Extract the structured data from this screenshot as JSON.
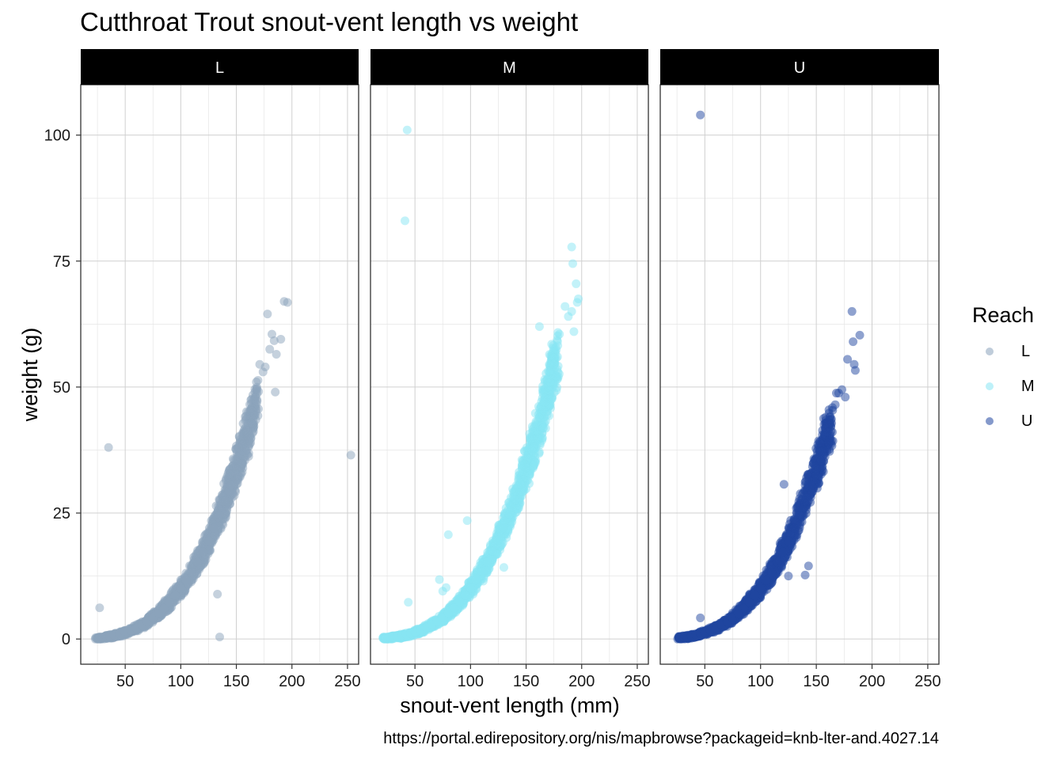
{
  "colors": {
    "L": "#8ba3bb",
    "M": "#88e6f4",
    "U": "#1f45a0"
  },
  "chart_data": {
    "type": "scatter",
    "title": "Cutthroat Trout snout-vent length vs weight",
    "xlabel": "snout-vent length (mm)",
    "ylabel": "weight (g)",
    "caption": "https://portal.edirepository.org/nis/mapbrowse?packageid=knb-lter-and.4027.14",
    "xlim": [
      10,
      260
    ],
    "ylim": [
      -5,
      110
    ],
    "x_ticks": [
      50,
      100,
      150,
      200,
      250
    ],
    "y_ticks": [
      0,
      25,
      50,
      75,
      100
    ],
    "grid": true,
    "legend": {
      "title": "Reach",
      "position": "right",
      "entries": [
        "L",
        "M",
        "U"
      ]
    },
    "facet_by": "Reach",
    "facets": [
      {
        "label": "L",
        "series": "L",
        "bulk_curve": {
          "x_range": [
            25,
            168
          ],
          "formula": "weight ≈ 1.0e-5 × length^3 (dense band)"
        },
        "points": [
          [
            26,
            0.2
          ],
          [
            28,
            0.3
          ],
          [
            30,
            0.4
          ],
          [
            33,
            0.5
          ],
          [
            36,
            0.6
          ],
          [
            40,
            0.8
          ],
          [
            45,
            1.0
          ],
          [
            50,
            1.3
          ],
          [
            55,
            1.7
          ],
          [
            60,
            2.2
          ],
          [
            65,
            2.8
          ],
          [
            70,
            3.4
          ],
          [
            75,
            4.2
          ],
          [
            80,
            5.1
          ],
          [
            85,
            6.1
          ],
          [
            90,
            7.3
          ],
          [
            95,
            8.6
          ],
          [
            100,
            10.0
          ],
          [
            105,
            11.6
          ],
          [
            110,
            13.3
          ],
          [
            115,
            15.2
          ],
          [
            120,
            17.3
          ],
          [
            125,
            19.5
          ],
          [
            130,
            22.0
          ],
          [
            135,
            24.6
          ],
          [
            140,
            27.4
          ],
          [
            145,
            30.5
          ],
          [
            150,
            33.8
          ],
          [
            155,
            37.2
          ],
          [
            160,
            41.0
          ],
          [
            165,
            44.9
          ],
          [
            170,
            49.1
          ],
          [
            176,
            54.0
          ],
          [
            180,
            57.5
          ],
          [
            182,
            60.5
          ],
          [
            184,
            59.2
          ],
          [
            186,
            56.5
          ],
          [
            190,
            59.5
          ],
          [
            193,
            67.0
          ],
          [
            196,
            66.8
          ],
          [
            178,
            64.5
          ],
          [
            185,
            49.0
          ],
          [
            168,
            51.0
          ],
          [
            171,
            54.5
          ],
          [
            174,
            53.0
          ],
          [
            35,
            38.0
          ],
          [
            27,
            6.2
          ],
          [
            133,
            8.9
          ],
          [
            135,
            0.4
          ],
          [
            253,
            36.5
          ]
        ]
      },
      {
        "label": "M",
        "series": "M",
        "bulk_curve": {
          "x_range": [
            22,
            178
          ],
          "formula": "weight ≈ 1.0e-5 × length^3 (dense band)"
        },
        "points": [
          [
            24,
            0.2
          ],
          [
            27,
            0.3
          ],
          [
            30,
            0.4
          ],
          [
            34,
            0.5
          ],
          [
            38,
            0.7
          ],
          [
            42,
            0.9
          ],
          [
            46,
            1.1
          ],
          [
            50,
            1.4
          ],
          [
            55,
            1.8
          ],
          [
            60,
            2.3
          ],
          [
            65,
            2.9
          ],
          [
            70,
            3.5
          ],
          [
            75,
            4.3
          ],
          [
            80,
            5.2
          ],
          [
            85,
            6.2
          ],
          [
            90,
            7.4
          ],
          [
            95,
            8.7
          ],
          [
            100,
            10.1
          ],
          [
            105,
            11.7
          ],
          [
            110,
            13.4
          ],
          [
            115,
            15.3
          ],
          [
            120,
            17.4
          ],
          [
            125,
            19.6
          ],
          [
            130,
            22.1
          ],
          [
            135,
            24.7
          ],
          [
            140,
            27.6
          ],
          [
            145,
            30.7
          ],
          [
            150,
            34.0
          ],
          [
            155,
            37.5
          ],
          [
            160,
            41.3
          ],
          [
            165,
            45.5
          ],
          [
            170,
            50.0
          ],
          [
            175,
            54.5
          ],
          [
            180,
            60.5
          ],
          [
            185,
            66.0
          ],
          [
            188,
            64.0
          ],
          [
            191,
            65.0
          ],
          [
            193,
            61.0
          ],
          [
            192,
            74.5
          ],
          [
            191,
            77.8
          ],
          [
            196,
            66.8
          ],
          [
            197,
            67.5
          ],
          [
            195,
            70.5
          ],
          [
            178,
            53.5
          ],
          [
            173,
            58.5
          ],
          [
            162,
            62.0
          ],
          [
            43,
            101.0
          ],
          [
            41,
            83.0
          ],
          [
            44,
            7.3
          ],
          [
            80,
            20.7
          ],
          [
            97,
            23.5
          ],
          [
            130,
            14.2
          ],
          [
            72,
            11.8
          ],
          [
            75,
            9.5
          ],
          [
            78,
            10.2
          ]
        ]
      },
      {
        "label": "U",
        "series": "U",
        "bulk_curve": {
          "x_range": [
            26,
            163
          ],
          "formula": "weight ≈ 1.0e-5 × length^3 (dense band)"
        },
        "points": [
          [
            28,
            0.2
          ],
          [
            31,
            0.3
          ],
          [
            34,
            0.4
          ],
          [
            38,
            0.6
          ],
          [
            42,
            0.8
          ],
          [
            46,
            1.0
          ],
          [
            50,
            1.3
          ],
          [
            55,
            1.7
          ],
          [
            60,
            2.2
          ],
          [
            65,
            2.8
          ],
          [
            70,
            3.4
          ],
          [
            75,
            4.2
          ],
          [
            80,
            5.1
          ],
          [
            85,
            6.1
          ],
          [
            90,
            7.3
          ],
          [
            95,
            8.6
          ],
          [
            100,
            10.0
          ],
          [
            105,
            11.6
          ],
          [
            110,
            13.3
          ],
          [
            115,
            15.2
          ],
          [
            120,
            17.3
          ],
          [
            125,
            19.5
          ],
          [
            130,
            22.0
          ],
          [
            135,
            24.6
          ],
          [
            140,
            27.4
          ],
          [
            145,
            30.5
          ],
          [
            150,
            33.8
          ],
          [
            155,
            37.2
          ],
          [
            160,
            41.0
          ],
          [
            163,
            43.5
          ],
          [
            170,
            48.8
          ],
          [
            173,
            49.5
          ],
          [
            176,
            48.0
          ],
          [
            178,
            55.5
          ],
          [
            182,
            65.0
          ],
          [
            183,
            59.0
          ],
          [
            184,
            54.5
          ],
          [
            185,
            53.3
          ],
          [
            189,
            60.3
          ],
          [
            168,
            48.8
          ],
          [
            167,
            46.5
          ],
          [
            46,
            104.0
          ],
          [
            46,
            4.2
          ],
          [
            121,
            30.7
          ],
          [
            143,
            14.5
          ],
          [
            140,
            12.7
          ],
          [
            125,
            12.5
          ]
        ]
      }
    ]
  }
}
